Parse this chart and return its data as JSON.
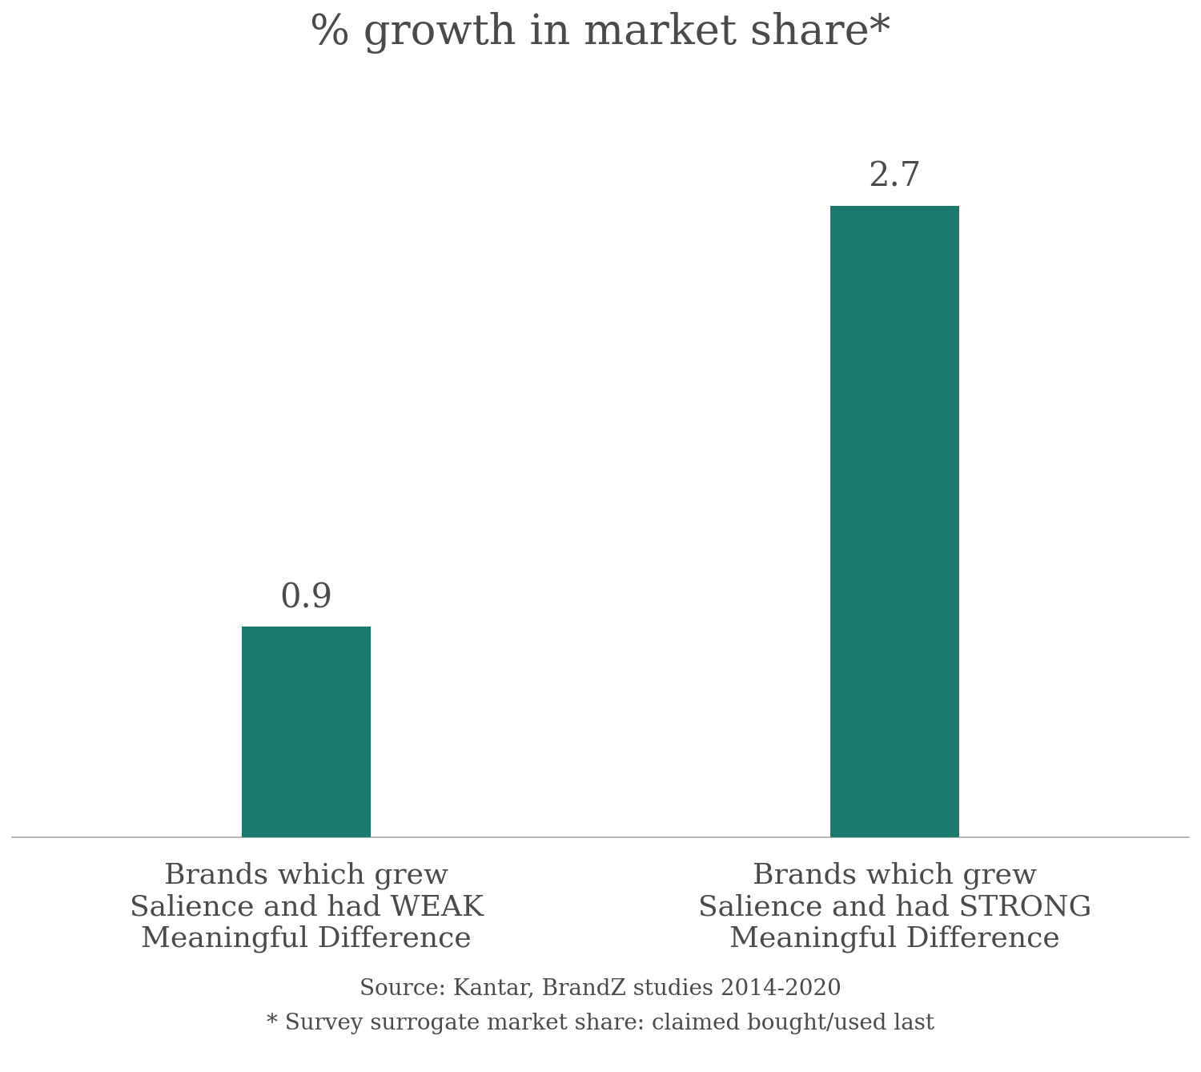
{
  "title": "% growth in market share*",
  "categories": [
    "Brands which grew\nSalience and had WEAK\nMeaningful Difference",
    "Brands which grew\nSalience and had STRONG\nMeaningful Difference"
  ],
  "values": [
    0.9,
    2.7
  ],
  "bar_color": "#1a7a6e",
  "value_labels": [
    "0.9",
    "2.7"
  ],
  "source_text": "Source: Kantar, BrandZ studies 2014-2020\n* Survey surrogate market share: claimed bought/used last",
  "ylim": [
    0,
    3.2
  ],
  "bar_width": 0.22,
  "x_positions": [
    1,
    2
  ],
  "xlim": [
    0.5,
    2.5
  ],
  "title_fontsize": 38,
  "label_fontsize": 26,
  "value_fontsize": 30,
  "source_fontsize": 20,
  "text_color": "#4a4a4a",
  "background_color": "#ffffff",
  "axis_line_color": "#aaaaaa"
}
